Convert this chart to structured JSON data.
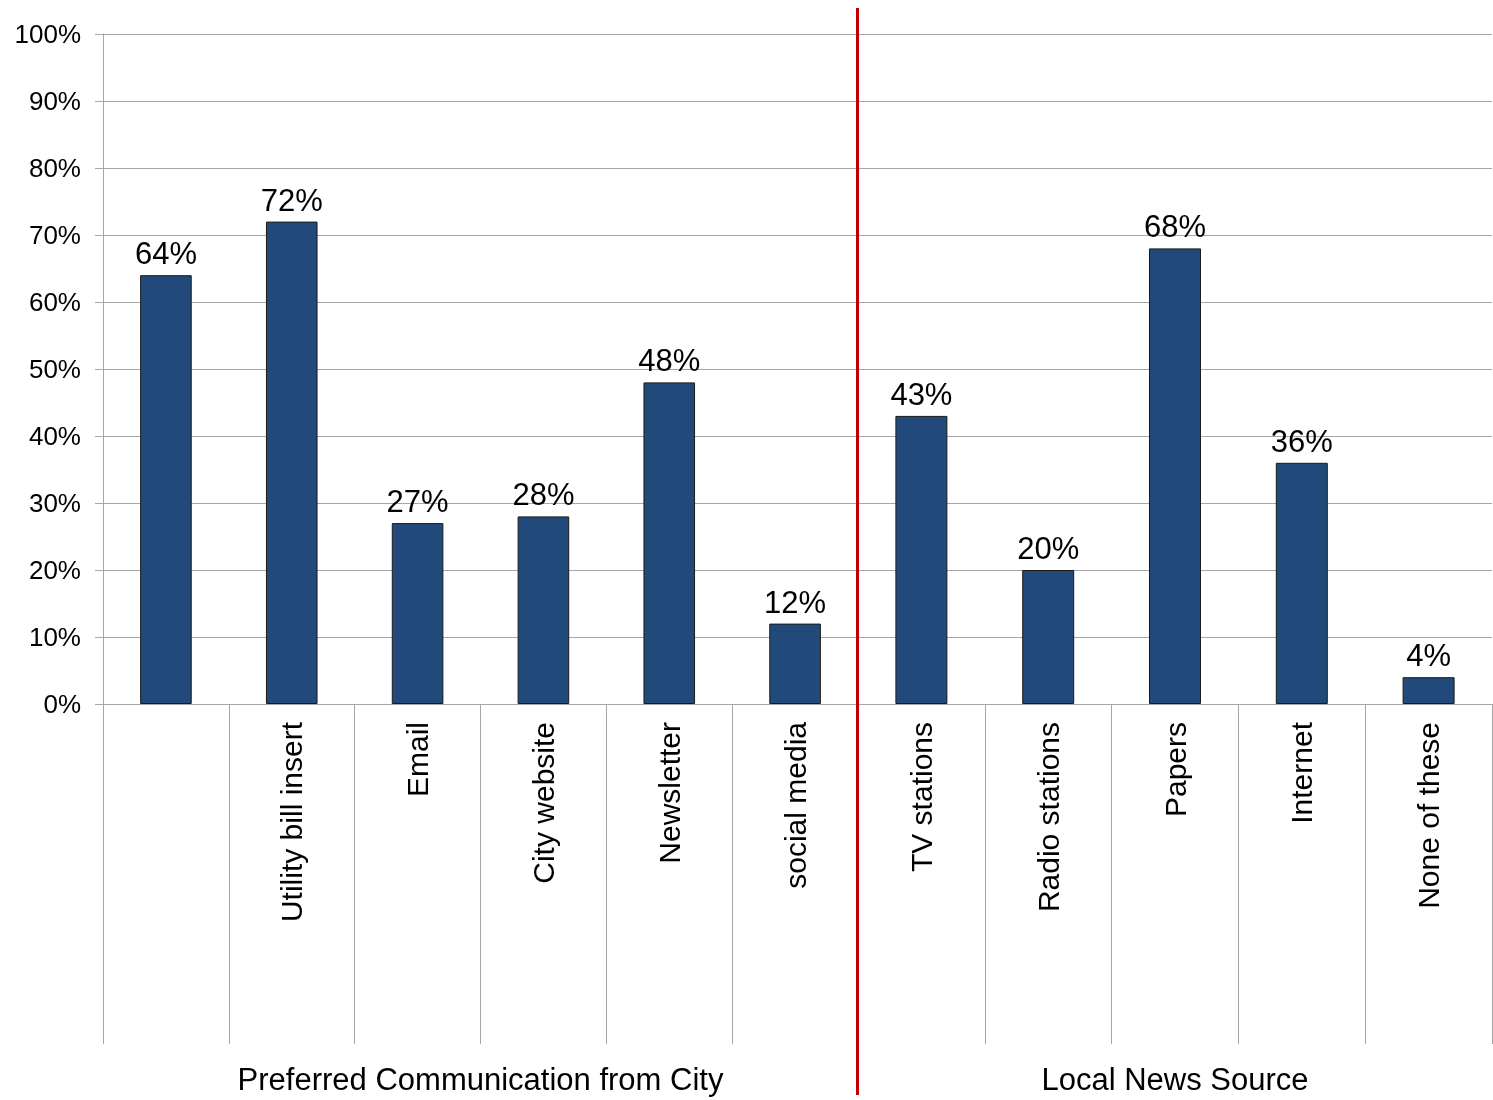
{
  "chart_data": [
    {
      "type": "bar",
      "xlabel": "Preferred Communication from City",
      "categories": [
        null,
        "Utility bill insert",
        "Email",
        "City website",
        "Newsletter",
        "social media"
      ],
      "values": [
        64,
        72,
        27,
        28,
        48,
        12
      ],
      "value_labels": [
        "64%",
        "72%",
        "27%",
        "28%",
        "48%",
        "12%"
      ],
      "color": "#214a7b",
      "ylim": [
        0,
        100
      ],
      "yticks": [
        {
          "value": 0,
          "label": "0%"
        },
        {
          "value": 10,
          "label": "10%"
        },
        {
          "value": 20,
          "label": "20%"
        },
        {
          "value": 30,
          "label": "30%"
        },
        {
          "value": 40,
          "label": "40%"
        },
        {
          "value": 50,
          "label": "50%"
        },
        {
          "value": 60,
          "label": "60%"
        },
        {
          "value": 70,
          "label": "70%"
        },
        {
          "value": 80,
          "label": "80%"
        },
        {
          "value": 90,
          "label": "90%"
        },
        {
          "value": 100,
          "label": "100%"
        }
      ],
      "grid": "y"
    },
    {
      "type": "bar",
      "xlabel": "Local News Source",
      "categories": [
        "TV stations",
        "Radio stations",
        "Papers",
        "Internet",
        "None of these"
      ],
      "values": [
        43,
        20,
        68,
        36,
        4
      ],
      "value_labels": [
        "43%",
        "20%",
        "68%",
        "36%",
        "4%"
      ],
      "color": "#214a7b",
      "ylim": [
        0,
        100
      ],
      "yticks": [
        {
          "value": 0,
          "label": null
        },
        {
          "value": 10,
          "label": null
        },
        {
          "value": 20,
          "label": null
        },
        {
          "value": 30,
          "label": null
        },
        {
          "value": 40,
          "label": null
        },
        {
          "value": 50,
          "label": null
        },
        {
          "value": 60,
          "label": null
        },
        {
          "value": 70,
          "label": null
        },
        {
          "value": 80,
          "label": null
        },
        {
          "value": 90,
          "label": null
        },
        {
          "value": 100,
          "label": null
        }
      ],
      "grid": "y",
      "tick_labels": "x"
    }
  ]
}
